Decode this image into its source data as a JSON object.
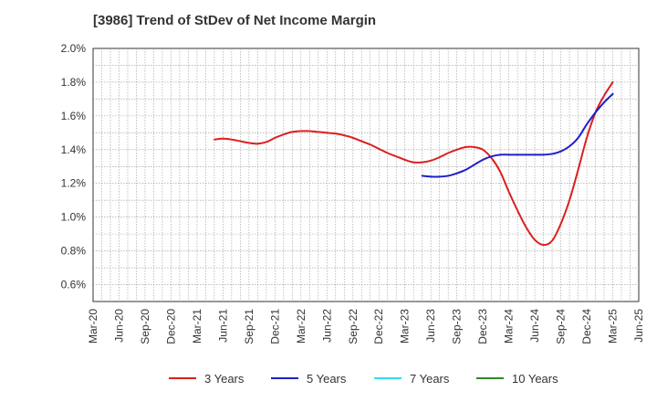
{
  "chart_data": {
    "type": "line",
    "title": "[3986]  Trend of StDev of Net Income Margin",
    "xlabel": "",
    "ylabel": "",
    "x_ticks": [
      "Mar-20",
      "Jun-20",
      "Sep-20",
      "Dec-20",
      "Mar-21",
      "Jun-21",
      "Sep-21",
      "Dec-21",
      "Mar-22",
      "Jun-22",
      "Sep-22",
      "Dec-22",
      "Mar-23",
      "Jun-23",
      "Sep-23",
      "Dec-23",
      "Mar-24",
      "Jun-24",
      "Sep-24",
      "Dec-24",
      "Mar-25",
      "Jun-25"
    ],
    "y_ticks": [
      "0.6%",
      "0.8%",
      "1.0%",
      "1.2%",
      "1.4%",
      "1.6%",
      "1.8%",
      "2.0%"
    ],
    "ylim": [
      0.5,
      2.0
    ],
    "grid": true,
    "legend_position": "bottom",
    "series": [
      {
        "name": "3 Years",
        "color": "#dd1f1f",
        "x": [
          "May-21",
          "Jun-21",
          "Jul-21",
          "Aug-21",
          "Sep-21",
          "Oct-21",
          "Nov-21",
          "Dec-21",
          "Jan-22",
          "Feb-22",
          "Mar-22",
          "Apr-22",
          "May-22",
          "Jun-22",
          "Jul-22",
          "Aug-22",
          "Sep-22",
          "Oct-22",
          "Nov-22",
          "Dec-22",
          "Jan-23",
          "Feb-23",
          "Mar-23",
          "Apr-23",
          "May-23",
          "Jun-23",
          "Jul-23",
          "Aug-23",
          "Sep-23",
          "Oct-23",
          "Nov-23",
          "Dec-23",
          "Jan-24",
          "Feb-24",
          "Mar-24",
          "Apr-24",
          "May-24",
          "Jun-24",
          "Jul-24",
          "Aug-24",
          "Sep-24",
          "Oct-24",
          "Nov-24",
          "Dec-24",
          "Jan-25",
          "Feb-25",
          "Mar-25"
        ],
        "values": [
          1.46,
          1.465,
          1.46,
          1.45,
          1.44,
          1.435,
          1.445,
          1.47,
          1.49,
          1.505,
          1.51,
          1.51,
          1.505,
          1.5,
          1.495,
          1.485,
          1.47,
          1.45,
          1.43,
          1.405,
          1.38,
          1.36,
          1.34,
          1.325,
          1.325,
          1.335,
          1.355,
          1.38,
          1.4,
          1.415,
          1.415,
          1.4,
          1.35,
          1.27,
          1.15,
          1.04,
          0.94,
          0.865,
          0.835,
          0.86,
          0.96,
          1.1,
          1.28,
          1.47,
          1.62,
          1.72,
          1.8
        ]
      },
      {
        "name": "5 Years",
        "color": "#1f1fc8",
        "x": [
          "May-23",
          "Jun-23",
          "Jul-23",
          "Aug-23",
          "Sep-23",
          "Oct-23",
          "Nov-23",
          "Dec-23",
          "Jan-24",
          "Feb-24",
          "Mar-24",
          "Apr-24",
          "May-24",
          "Jun-24",
          "Jul-24",
          "Aug-24",
          "Sep-24",
          "Oct-24",
          "Nov-24",
          "Dec-24",
          "Jan-25",
          "Feb-25",
          "Mar-25"
        ],
        "values": [
          1.245,
          1.24,
          1.24,
          1.245,
          1.26,
          1.28,
          1.31,
          1.34,
          1.36,
          1.37,
          1.37,
          1.37,
          1.37,
          1.37,
          1.37,
          1.375,
          1.39,
          1.42,
          1.47,
          1.55,
          1.62,
          1.68,
          1.73
        ]
      },
      {
        "name": "7 Years",
        "color": "#33ddee",
        "x": [],
        "values": []
      },
      {
        "name": "10 Years",
        "color": "#2a8a2a",
        "x": [],
        "values": []
      }
    ]
  }
}
